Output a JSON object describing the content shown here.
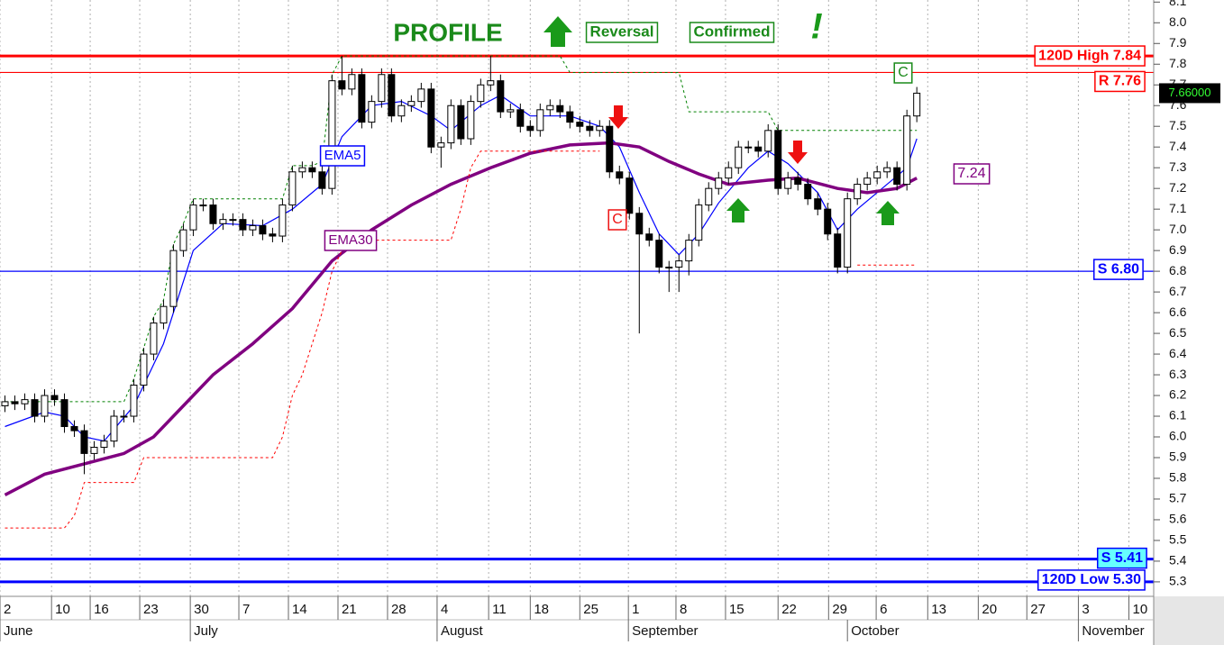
{
  "chart_data": {
    "type": "candlestick",
    "title": "PROFILE",
    "annotations": {
      "reversal": "Reversal",
      "confirmed": "Confirmed",
      "exclaim": "!",
      "c_sell": "C",
      "c_buy": "C",
      "ema30_value": 7.24
    },
    "x": [
      0,
      1,
      2,
      3,
      4,
      5,
      6,
      7,
      8,
      9,
      10,
      11,
      12,
      13,
      14,
      15,
      16,
      17,
      18,
      19,
      20,
      21,
      22,
      23,
      24,
      25,
      26,
      27,
      28,
      29,
      30,
      31,
      32,
      33,
      34,
      35,
      36,
      37,
      38,
      39,
      40,
      41,
      42,
      43,
      44,
      45,
      46,
      47,
      48,
      49,
      50,
      51,
      52,
      53,
      54,
      55,
      56,
      57,
      58,
      59,
      60,
      61,
      62,
      63,
      64,
      65,
      66,
      67,
      68,
      69,
      70,
      71,
      72,
      73,
      74,
      75,
      76,
      77,
      78,
      79,
      80,
      81,
      82,
      83,
      84,
      85,
      86,
      87,
      88,
      89,
      90,
      91,
      92
    ],
    "open": [
      6.15,
      6.17,
      6.16,
      6.18,
      6.1,
      6.2,
      6.18,
      6.05,
      6.03,
      5.92,
      5.95,
      5.98,
      6.1,
      6.1,
      6.25,
      6.4,
      6.55,
      6.63,
      6.9,
      7.0,
      7.12,
      7.12,
      7.03,
      7.05,
      7.05,
      7.0,
      7.02,
      6.98,
      6.97,
      7.12,
      7.28,
      7.3,
      7.28,
      7.2,
      7.72,
      7.68,
      7.75,
      7.52,
      7.62,
      7.75,
      7.55,
      7.6,
      7.62,
      7.68,
      7.4,
      7.42,
      7.6,
      7.44,
      7.62,
      7.7,
      7.72,
      7.57,
      7.58,
      7.5,
      7.48,
      7.58,
      7.6,
      7.57,
      7.52,
      7.5,
      7.48,
      7.5,
      7.28,
      7.25,
      7.08,
      6.98,
      6.95,
      6.82,
      6.82,
      6.85,
      6.95,
      7.12,
      7.2,
      7.25,
      7.3,
      7.4,
      7.4,
      7.38,
      7.48,
      7.2,
      7.25,
      7.22,
      7.15,
      7.1,
      6.98,
      6.82,
      7.15,
      7.22,
      7.25,
      7.28,
      7.3,
      7.22,
      7.55
    ],
    "high": [
      6.2,
      6.2,
      6.21,
      6.21,
      6.23,
      6.23,
      6.21,
      6.08,
      6.06,
      5.98,
      6.01,
      6.13,
      6.13,
      6.28,
      6.43,
      6.58,
      6.66,
      6.93,
      7.03,
      7.15,
      7.15,
      7.15,
      7.08,
      7.08,
      7.08,
      7.05,
      7.05,
      7.01,
      7.15,
      7.31,
      7.33,
      7.33,
      7.31,
      7.75,
      7.84,
      7.78,
      7.78,
      7.65,
      7.78,
      7.78,
      7.63,
      7.65,
      7.71,
      7.71,
      7.45,
      7.63,
      7.63,
      7.65,
      7.73,
      7.84,
      7.75,
      7.61,
      7.61,
      7.53,
      7.61,
      7.63,
      7.63,
      7.6,
      7.55,
      7.53,
      7.53,
      7.53,
      7.31,
      7.28,
      7.11,
      7.01,
      6.98,
      6.85,
      6.88,
      6.98,
      7.15,
      7.23,
      7.28,
      7.33,
      7.43,
      7.43,
      7.43,
      7.51,
      7.51,
      7.28,
      7.28,
      7.25,
      7.18,
      7.13,
      7.01,
      7.18,
      7.25,
      7.28,
      7.31,
      7.33,
      7.33,
      7.58,
      7.69
    ],
    "low": [
      6.12,
      6.13,
      6.13,
      6.07,
      6.07,
      6.15,
      6.02,
      6.0,
      5.82,
      5.89,
      5.92,
      5.95,
      6.07,
      6.07,
      6.22,
      6.37,
      6.52,
      6.6,
      6.87,
      6.97,
      7.09,
      7.0,
      7.0,
      7.02,
      6.97,
      6.97,
      6.95,
      6.94,
      6.94,
      7.09,
      7.25,
      7.25,
      7.17,
      7.17,
      7.65,
      7.65,
      7.49,
      7.49,
      7.59,
      7.52,
      7.52,
      7.57,
      7.59,
      7.37,
      7.3,
      7.39,
      7.41,
      7.41,
      7.59,
      7.67,
      7.54,
      7.54,
      7.47,
      7.45,
      7.45,
      7.55,
      7.54,
      7.49,
      7.47,
      7.45,
      7.45,
      7.25,
      7.22,
      7.05,
      6.5,
      6.92,
      6.79,
      6.7,
      6.7,
      6.78,
      6.92,
      7.09,
      7.17,
      7.22,
      7.27,
      7.37,
      7.35,
      7.35,
      7.17,
      7.17,
      7.19,
      7.12,
      7.07,
      6.95,
      6.79,
      6.79,
      7.12,
      7.19,
      7.22,
      7.25,
      7.19,
      7.19,
      7.52
    ],
    "close": [
      6.17,
      6.16,
      6.18,
      6.1,
      6.2,
      6.18,
      6.05,
      6.03,
      5.92,
      5.95,
      5.98,
      6.1,
      6.1,
      6.25,
      6.4,
      6.55,
      6.63,
      6.9,
      7.0,
      7.12,
      7.12,
      7.03,
      7.05,
      7.05,
      7.0,
      7.02,
      6.98,
      6.97,
      7.12,
      7.28,
      7.3,
      7.28,
      7.2,
      7.72,
      7.68,
      7.75,
      7.52,
      7.62,
      7.75,
      7.55,
      7.6,
      7.62,
      7.68,
      7.4,
      7.42,
      7.6,
      7.44,
      7.62,
      7.7,
      7.72,
      7.57,
      7.58,
      7.5,
      7.48,
      7.58,
      7.6,
      7.57,
      7.52,
      7.5,
      7.48,
      7.5,
      7.28,
      7.25,
      7.08,
      6.98,
      6.95,
      6.82,
      6.82,
      6.85,
      6.95,
      7.12,
      7.2,
      7.25,
      7.3,
      7.4,
      7.4,
      7.38,
      7.48,
      7.2,
      7.25,
      7.22,
      7.15,
      7.1,
      6.98,
      6.82,
      7.15,
      7.22,
      7.25,
      7.28,
      7.3,
      7.22,
      7.55,
      7.66
    ],
    "candle_colors": {
      "up": "#ffffff",
      "down": "#000000",
      "outline": "#000000"
    },
    "series": [
      {
        "name": "EMA5",
        "color": "#0000ff",
        "width": 1.2,
        "dashed": false,
        "x": [
          0,
          4,
          6,
          8,
          10,
          13,
          16,
          19,
          22,
          26,
          29,
          32,
          34,
          37,
          40,
          43,
          45,
          48,
          50,
          53,
          57,
          60,
          62,
          64,
          66,
          68,
          70,
          72,
          75,
          77,
          79,
          82,
          84,
          86,
          89,
          91,
          92
        ],
        "values": [
          6.05,
          6.12,
          6.1,
          6.0,
          5.98,
          6.15,
          6.45,
          6.9,
          7.03,
          7.02,
          7.1,
          7.22,
          7.45,
          7.6,
          7.62,
          7.55,
          7.48,
          7.6,
          7.65,
          7.55,
          7.55,
          7.5,
          7.4,
          7.18,
          6.98,
          6.88,
          6.98,
          7.13,
          7.3,
          7.38,
          7.32,
          7.18,
          7.0,
          7.1,
          7.22,
          7.3,
          7.44
        ]
      },
      {
        "name": "EMA30",
        "color": "#800080",
        "width": 3.5,
        "dashed": false,
        "x": [
          0,
          4,
          8,
          12,
          15,
          18,
          21,
          25,
          29,
          33,
          37,
          41,
          45,
          49,
          53,
          57,
          61,
          64,
          67,
          70,
          73,
          77,
          80,
          84,
          87,
          90,
          92
        ],
        "values": [
          5.72,
          5.82,
          5.87,
          5.92,
          6.0,
          6.15,
          6.3,
          6.45,
          6.62,
          6.85,
          7.0,
          7.12,
          7.22,
          7.3,
          7.37,
          7.41,
          7.42,
          7.4,
          7.33,
          7.27,
          7.22,
          7.24,
          7.25,
          7.2,
          7.18,
          7.2,
          7.25
        ]
      },
      {
        "color": "#008000",
        "width": 1,
        "dashed": true,
        "x": [
          0,
          12,
          13,
          14,
          15,
          16,
          17,
          18,
          19,
          28,
          29,
          31,
          32,
          33,
          34,
          56,
          57,
          68,
          69,
          77,
          78,
          92
        ],
        "values": [
          6.17,
          6.17,
          6.28,
          6.43,
          6.58,
          6.66,
          6.93,
          7.03,
          7.15,
          7.15,
          7.31,
          7.31,
          7.33,
          7.75,
          7.84,
          7.84,
          7.76,
          7.76,
          7.57,
          7.57,
          7.48,
          7.48
        ]
      },
      {
        "color": "#ff0000",
        "width": 1,
        "dashed": true,
        "x": [
          0,
          6,
          7,
          8,
          13,
          14,
          27,
          28,
          29,
          30,
          31,
          32,
          33,
          34,
          35,
          36,
          45,
          46,
          47,
          48,
          60,
          61,
          85,
          86,
          92
        ],
        "values": [
          5.56,
          5.56,
          5.62,
          5.78,
          5.78,
          5.9,
          5.9,
          6.0,
          6.2,
          6.3,
          6.45,
          6.6,
          6.8,
          6.9,
          6.95,
          6.95,
          6.95,
          7.1,
          7.3,
          7.38,
          7.38,
          null,
          null,
          6.83,
          6.83
        ]
      }
    ],
    "levels": [
      {
        "value": 7.84,
        "label": "120D High 7.84",
        "color": "#ff0000"
      },
      {
        "value": 7.76,
        "label": "R 7.76",
        "color": "#ff0000"
      },
      {
        "value": 6.8,
        "label": "S 6.80",
        "color": "#0000ff"
      },
      {
        "value": 5.41,
        "label": "S 5.41",
        "color": "#0000ff"
      },
      {
        "value": 5.3,
        "label": "120D Low 5.30",
        "color": "#0000ff"
      }
    ],
    "last_price": {
      "value": 7.66,
      "label": "7.66000"
    },
    "xlim": [
      -0.5,
      115.9
    ],
    "xticks": [
      {
        "value": -0.5,
        "label": "2"
      },
      {
        "value": 4.7,
        "label": "10"
      },
      {
        "value": 8.6,
        "label": "16"
      },
      {
        "value": 13.6,
        "label": "23"
      },
      {
        "value": 18.7,
        "label": "30"
      },
      {
        "value": 23.6,
        "label": "7"
      },
      {
        "value": 28.6,
        "label": "14"
      },
      {
        "value": 33.6,
        "label": "21"
      },
      {
        "value": 38.6,
        "label": "28"
      },
      {
        "value": 43.6,
        "label": "4"
      },
      {
        "value": 48.8,
        "label": "11"
      },
      {
        "value": 53,
        "label": "18"
      },
      {
        "value": 58,
        "label": "25"
      },
      {
        "value": 62.9,
        "label": "1"
      },
      {
        "value": 67.7,
        "label": "8"
      },
      {
        "value": 72.7,
        "label": "15"
      },
      {
        "value": 78,
        "label": "22"
      },
      {
        "value": 83.1,
        "label": "29"
      },
      {
        "value": 87.9,
        "label": "6"
      },
      {
        "value": 93.1,
        "label": "13"
      },
      {
        "value": 98.2,
        "label": "20"
      },
      {
        "value": 103.1,
        "label": "27"
      },
      {
        "value": 108.3,
        "label": "3"
      },
      {
        "value": 113.4,
        "label": "10"
      }
    ],
    "months": [
      {
        "value": -0.5,
        "label": "June"
      },
      {
        "value": 18.7,
        "label": "July"
      },
      {
        "value": 43.6,
        "label": "August"
      },
      {
        "value": 62.9,
        "label": "September"
      },
      {
        "value": 85,
        "label": "October"
      },
      {
        "value": 108.3,
        "label": "November"
      }
    ],
    "ylim": [
      5.23,
      8.11
    ],
    "yticks": [
      5.3,
      5.4,
      5.5,
      5.6,
      5.7,
      5.8,
      5.9,
      {
        "value": 6,
        "label": "6.0"
      },
      6.1,
      6.2,
      6.3,
      6.4,
      6.5,
      6.6,
      6.7,
      6.8,
      6.9,
      {
        "value": 7,
        "label": "7.0"
      },
      7.1,
      7.2,
      7.3,
      7.4,
      7.5,
      7.6,
      7.7,
      7.8,
      7.9,
      {
        "value": 8,
        "label": "8.0"
      },
      8.1
    ],
    "grid": true
  }
}
